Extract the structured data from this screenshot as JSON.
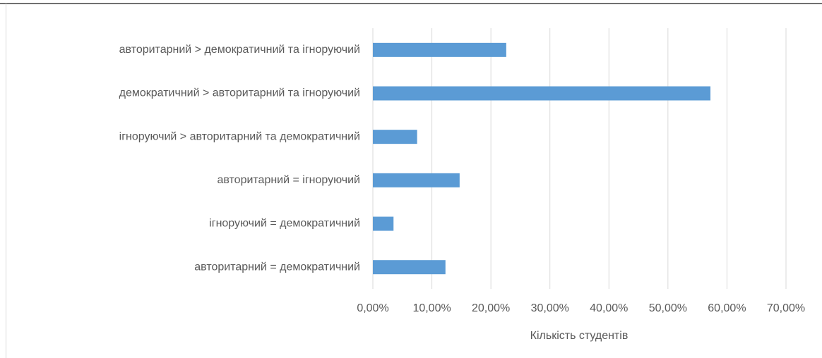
{
  "chart_data": {
    "type": "bar",
    "orientation": "horizontal",
    "categories": [
      "авторитарний > демократичний та ігноруючий",
      "демократичний > авторитарний та ігноруючий",
      "ігноруючий > авторитарний та демократичний",
      "авторитарний = ігноруючий",
      "ігноруючий = демократичний",
      "авторитарний = демократичний"
    ],
    "values": [
      22.6,
      57.2,
      7.5,
      14.7,
      3.5,
      12.3
    ],
    "color": "#5b9bd5",
    "xlabel": "Кількість студентів",
    "xlim": [
      0,
      70
    ],
    "xticks": [
      {
        "value": 0,
        "label": "0,00%"
      },
      {
        "value": 10,
        "label": "10,00%"
      },
      {
        "value": 20,
        "label": "20,00%"
      },
      {
        "value": 30,
        "label": "30,00%"
      },
      {
        "value": 40,
        "label": "40,00%"
      },
      {
        "value": 50,
        "label": "50,00%"
      },
      {
        "value": 60,
        "label": "60,00%"
      },
      {
        "value": 70,
        "label": "70,00%"
      }
    ],
    "grid": true
  }
}
